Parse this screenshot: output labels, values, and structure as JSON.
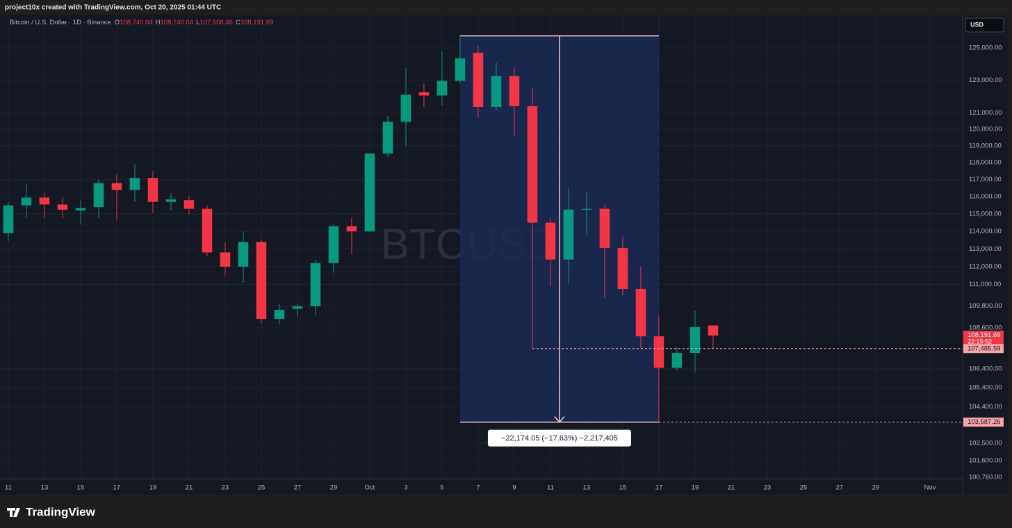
{
  "header": {
    "credit": "project10x created with TradingView.com, Oct 20, 2025 01:44 UTC"
  },
  "chart_data": {
    "type": "candlestick",
    "title": "Bitcoin / U.S. Dollar · 1D · Binance",
    "legend_ohlc": [
      {
        "key": "O",
        "value": "108,740.04"
      },
      {
        "key": "H",
        "value": "108,740.04"
      },
      {
        "key": "L",
        "value": "107,508.46"
      },
      {
        "key": "C",
        "value": "108,191.69"
      }
    ],
    "watermark": "BTCUSD",
    "currency": "USD",
    "x": [
      0,
      1,
      2,
      3,
      4,
      5,
      6,
      7,
      8,
      9,
      10,
      11,
      12,
      13,
      14,
      15,
      16,
      17,
      18,
      19,
      20,
      21,
      22,
      23,
      24,
      25,
      26,
      27,
      28,
      29,
      30,
      31,
      32,
      33,
      34,
      35,
      36,
      37,
      38,
      39
    ],
    "open": [
      113900,
      115500,
      115950,
      115550,
      115200,
      115400,
      116800,
      116400,
      117100,
      115700,
      115800,
      115300,
      112800,
      112000,
      113400,
      109100,
      109650,
      109800,
      112200,
      114300,
      114000,
      118550,
      120450,
      122250,
      122050,
      122950,
      124700,
      121350,
      123250,
      121400,
      114500,
      112400,
      115250,
      115300,
      113050,
      110750,
      108150,
      106450,
      107250,
      108740.04
    ],
    "high": [
      115700,
      116750,
      116200,
      115950,
      115800,
      117000,
      117300,
      117900,
      117500,
      116200,
      116050,
      115500,
      113400,
      114000,
      113550,
      109950,
      109950,
      112400,
      114400,
      114800,
      118550,
      120800,
      123750,
      122800,
      124800,
      125761.31,
      125150,
      124100,
      123750,
      122500,
      114750,
      116500,
      116250,
      115550,
      113700,
      112000,
      109300,
      107550,
      109550,
      108740.04
    ],
    "low": [
      113450,
      114800,
      114800,
      114750,
      114400,
      114800,
      114700,
      115700,
      115050,
      115200,
      114950,
      112600,
      111500,
      111100,
      108850,
      108800,
      109250,
      109300,
      111650,
      112700,
      114000,
      118350,
      119000,
      121350,
      121450,
      122800,
      120700,
      121150,
      119600,
      107485.59,
      110900,
      111050,
      113800,
      110250,
      110400,
      107500,
      103587.26,
      106300,
      106200,
      107508.46
    ],
    "close": [
      115500,
      115950,
      115550,
      115250,
      115350,
      116800,
      116400,
      117100,
      115700,
      115850,
      115300,
      112800,
      112000,
      113400,
      109100,
      109600,
      109800,
      112200,
      114300,
      114000,
      118550,
      120450,
      122100,
      122050,
      122950,
      124350,
      121350,
      123250,
      121400,
      114500,
      112400,
      115250,
      115300,
      113050,
      110750,
      108150,
      106450,
      107250,
      108650,
      108191.69
    ],
    "up_color": "#089981",
    "down_color": "#f23645",
    "log_scale": true,
    "grid": true,
    "ylim": [
      99884,
      127067
    ],
    "yticks": [
      {
        "value": 125000,
        "label": "125,000.00"
      },
      {
        "value": 123000,
        "label": "123,000.00"
      },
      {
        "value": 121000,
        "label": "121,000.00"
      },
      {
        "value": 120000,
        "label": "120,000.00"
      },
      {
        "value": 119000,
        "label": "119,000.00"
      },
      {
        "value": 118000,
        "label": "118,000.00"
      },
      {
        "value": 117000,
        "label": "117,000.00"
      },
      {
        "value": 116000,
        "label": "116,000.00"
      },
      {
        "value": 115000,
        "label": "115,000.00"
      },
      {
        "value": 114000,
        "label": "114,000.00"
      },
      {
        "value": 113000,
        "label": "113,000.00"
      },
      {
        "value": 112000,
        "label": "112,000.00"
      },
      {
        "value": 111000,
        "label": "111,000.00"
      },
      {
        "value": 109800,
        "label": "109,800.00"
      },
      {
        "value": 108600,
        "label": "108,600.00"
      },
      {
        "value": 106400,
        "label": "106,400.00"
      },
      {
        "value": 105400,
        "label": "105,400.00"
      },
      {
        "value": 104400,
        "label": "104,400.00"
      },
      {
        "value": 102500,
        "label": "102,500.00"
      },
      {
        "value": 101600,
        "label": "101,600.00"
      },
      {
        "value": 100760,
        "label": "100,760.00"
      }
    ],
    "xlim": [
      -0.46,
      52.81
    ],
    "xticks": [
      {
        "value": 0,
        "label": "11"
      },
      {
        "value": 2,
        "label": "13"
      },
      {
        "value": 4,
        "label": "15"
      },
      {
        "value": 6,
        "label": "17"
      },
      {
        "value": 8,
        "label": "19"
      },
      {
        "value": 10,
        "label": "21"
      },
      {
        "value": 12,
        "label": "23"
      },
      {
        "value": 14,
        "label": "25"
      },
      {
        "value": 16,
        "label": "27"
      },
      {
        "value": 18,
        "label": "29"
      },
      {
        "value": 20,
        "label": "Oct"
      },
      {
        "value": 22,
        "label": "3"
      },
      {
        "value": 24,
        "label": "5"
      },
      {
        "value": 26,
        "label": "7"
      },
      {
        "value": 28,
        "label": "9"
      },
      {
        "value": 30,
        "label": "11"
      },
      {
        "value": 32,
        "label": "13"
      },
      {
        "value": 34,
        "label": "15"
      },
      {
        "value": 36,
        "label": "17"
      },
      {
        "value": 38,
        "label": "19"
      },
      {
        "value": 40,
        "label": "21"
      },
      {
        "value": 42,
        "label": "23"
      },
      {
        "value": 44,
        "label": "25"
      },
      {
        "value": 46,
        "label": "27"
      },
      {
        "value": 48,
        "label": "29"
      },
      {
        "value": 51,
        "label": "Nov"
      }
    ],
    "price_labels": [
      {
        "value": 108191.69,
        "label": "108,191.69",
        "sub": "22:15:52"
      },
      {
        "value": 107485.59,
        "label": "107,485.59"
      },
      {
        "value": 103587.26,
        "label": "103,587.26"
      }
    ],
    "measure": {
      "x": [
        25,
        36
      ],
      "label": "−22,174.05 (−17.63%) −2,217,405"
    }
  },
  "footer": {
    "brand": "TradingView"
  }
}
